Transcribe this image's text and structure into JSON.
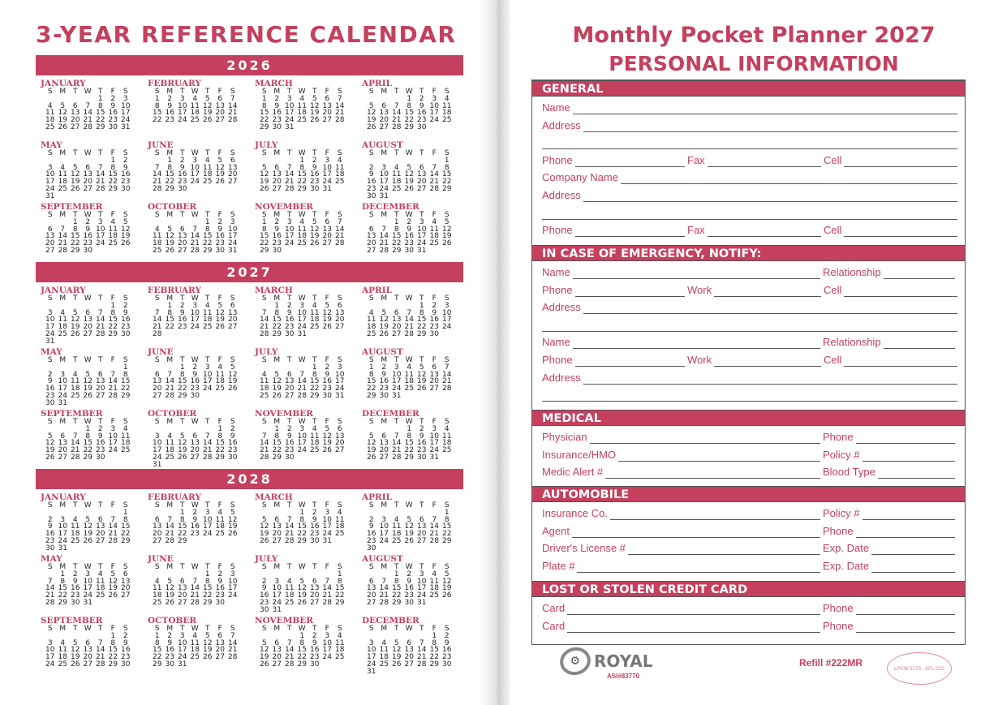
{
  "left": {
    "title": "3-YEAR REFERENCE CALENDAR",
    "weekdays": [
      "S",
      "M",
      "T",
      "W",
      "T",
      "F",
      "S"
    ],
    "years": [
      {
        "year": "2026",
        "months": [
          {
            "name": "JANUARY",
            "start": 4,
            "days": 31
          },
          {
            "name": "FEBRUARY",
            "start": 0,
            "days": 28
          },
          {
            "name": "MARCH",
            "start": 0,
            "days": 31
          },
          {
            "name": "APRIL",
            "start": 3,
            "days": 30
          },
          {
            "name": "MAY",
            "start": 5,
            "days": 31
          },
          {
            "name": "JUNE",
            "start": 1,
            "days": 30
          },
          {
            "name": "JULY",
            "start": 3,
            "days": 31
          },
          {
            "name": "AUGUST",
            "start": 6,
            "days": 31
          },
          {
            "name": "SEPTEMBER",
            "start": 2,
            "days": 30
          },
          {
            "name": "OCTOBER",
            "start": 4,
            "days": 31
          },
          {
            "name": "NOVEMBER",
            "start": 0,
            "days": 30
          },
          {
            "name": "DECEMBER",
            "start": 2,
            "days": 31
          }
        ]
      },
      {
        "year": "2027",
        "months": [
          {
            "name": "JANUARY",
            "start": 5,
            "days": 31
          },
          {
            "name": "FEBRUARY",
            "start": 1,
            "days": 28
          },
          {
            "name": "MARCH",
            "start": 1,
            "days": 31
          },
          {
            "name": "APRIL",
            "start": 4,
            "days": 30
          },
          {
            "name": "MAY",
            "start": 6,
            "days": 31
          },
          {
            "name": "JUNE",
            "start": 2,
            "days": 30
          },
          {
            "name": "JULY",
            "start": 4,
            "days": 31
          },
          {
            "name": "AUGUST",
            "start": 0,
            "days": 31
          },
          {
            "name": "SEPTEMBER",
            "start": 3,
            "days": 30
          },
          {
            "name": "OCTOBER",
            "start": 5,
            "days": 31
          },
          {
            "name": "NOVEMBER",
            "start": 1,
            "days": 30
          },
          {
            "name": "DECEMBER",
            "start": 3,
            "days": 31
          }
        ]
      },
      {
        "year": "2028",
        "months": [
          {
            "name": "JANUARY",
            "start": 6,
            "days": 31
          },
          {
            "name": "FEBRUARY",
            "start": 2,
            "days": 29
          },
          {
            "name": "MARCH",
            "start": 3,
            "days": 31
          },
          {
            "name": "APRIL",
            "start": 6,
            "days": 30
          },
          {
            "name": "MAY",
            "start": 1,
            "days": 31
          },
          {
            "name": "JUNE",
            "start": 4,
            "days": 30
          },
          {
            "name": "JULY",
            "start": 6,
            "days": 31
          },
          {
            "name": "AUGUST",
            "start": 2,
            "days": 31
          },
          {
            "name": "SEPTEMBER",
            "start": 5,
            "days": 30
          },
          {
            "name": "OCTOBER",
            "start": 0,
            "days": 31
          },
          {
            "name": "NOVEMBER",
            "start": 3,
            "days": 30
          },
          {
            "name": "DECEMBER",
            "start": 5,
            "days": 31
          }
        ]
      }
    ]
  },
  "right": {
    "title": "Monthly Pocket Planner 2027",
    "subtitle": "PERSONAL INFORMATION",
    "sections": [
      {
        "title": "GENERAL",
        "rows": [
          [
            "Name"
          ],
          [
            "Address"
          ],
          [
            ""
          ],
          [
            "Phone",
            "Fax",
            "Cell"
          ],
          [
            "Company Name"
          ],
          [
            "Address"
          ],
          [
            ""
          ],
          [
            "Phone",
            "Fax",
            "Cell"
          ]
        ]
      },
      {
        "title": "IN CASE OF EMERGENCY, NOTIFY:",
        "rows": [
          [
            "Name",
            "Relationship"
          ],
          [
            "Phone",
            "Work",
            "Cell"
          ],
          [
            "Address"
          ],
          [
            ""
          ],
          [
            "Name",
            "Relationship"
          ],
          [
            "Phone",
            "Work",
            "Cell"
          ],
          [
            "Address"
          ],
          [
            ""
          ]
        ]
      },
      {
        "title": "MEDICAL",
        "rows": [
          [
            "Physician",
            "Phone"
          ],
          [
            "Insurance/HMO",
            "Policy #"
          ],
          [
            "Medic Alert #",
            "Blood Type"
          ]
        ]
      },
      {
        "title": "AUTOMOBILE",
        "rows": [
          [
            "Insurance Co.",
            "Policy #"
          ],
          [
            "Agent",
            "Phone"
          ],
          [
            "Driver's License #",
            "Exp. Date"
          ],
          [
            "Plate #",
            "Exp. Date"
          ]
        ]
      },
      {
        "title": "LOST OR STOLEN CREDIT CARD",
        "rows": [
          [
            "Card",
            "Phone"
          ],
          [
            "Card",
            "Phone"
          ]
        ]
      }
    ],
    "footer": {
      "brand": "ROYAL",
      "asi": "ASI#83770",
      "refill": "Refill #222MR",
      "union": "LPCW 517S · AFL-CIO"
    }
  },
  "colors": {
    "accent": "#c4405e"
  }
}
